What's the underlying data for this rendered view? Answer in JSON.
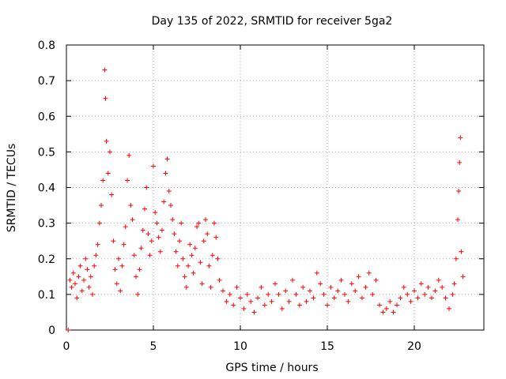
{
  "chart_data": {
    "type": "scatter",
    "title": "Day 135 of 2022, SRMTID for receiver 5ga2",
    "xlabel": "GPS time / hours",
    "ylabel": "SRMTID / TECUs",
    "xlim": [
      0,
      24
    ],
    "ylim": [
      0,
      0.8
    ],
    "xticks": [
      0,
      5,
      10,
      15,
      20
    ],
    "yticks": [
      0,
      0.1,
      0.2,
      0.3,
      0.4,
      0.5,
      0.6,
      0.7,
      0.8
    ],
    "xtick_labels": [
      "0",
      "5",
      "10",
      "15",
      "20"
    ],
    "ytick_labels": [
      "0",
      "0.1",
      "0.2",
      "0.3",
      "0.4",
      "0.5",
      "0.6",
      "0.7",
      "0.8"
    ],
    "grid": true,
    "marker": "+",
    "color": "#ff0000",
    "series": [
      {
        "name": "SRMTID",
        "points": [
          [
            0.1,
            0.0
          ],
          [
            0.2,
            0.14
          ],
          [
            0.3,
            0.12
          ],
          [
            0.4,
            0.16
          ],
          [
            0.5,
            0.13
          ],
          [
            0.6,
            0.09
          ],
          [
            0.7,
            0.15
          ],
          [
            0.8,
            0.18
          ],
          [
            0.9,
            0.11
          ],
          [
            1.0,
            0.14
          ],
          [
            1.1,
            0.2
          ],
          [
            1.2,
            0.17
          ],
          [
            1.3,
            0.12
          ],
          [
            1.4,
            0.15
          ],
          [
            1.5,
            0.1
          ],
          [
            1.6,
            0.18
          ],
          [
            1.7,
            0.21
          ],
          [
            1.8,
            0.24
          ],
          [
            1.9,
            0.3
          ],
          [
            2.0,
            0.35
          ],
          [
            2.1,
            0.42
          ],
          [
            2.2,
            0.73
          ],
          [
            2.25,
            0.65
          ],
          [
            2.3,
            0.53
          ],
          [
            2.4,
            0.44
          ],
          [
            2.5,
            0.5
          ],
          [
            2.6,
            0.38
          ],
          [
            2.7,
            0.25
          ],
          [
            2.8,
            0.17
          ],
          [
            2.9,
            0.13
          ],
          [
            3.0,
            0.2
          ],
          [
            3.1,
            0.11
          ],
          [
            3.2,
            0.18
          ],
          [
            3.3,
            0.24
          ],
          [
            3.4,
            0.29
          ],
          [
            3.5,
            0.42
          ],
          [
            3.6,
            0.49
          ],
          [
            3.7,
            0.35
          ],
          [
            3.8,
            0.31
          ],
          [
            3.9,
            0.21
          ],
          [
            4.0,
            0.15
          ],
          [
            4.1,
            0.1
          ],
          [
            4.2,
            0.17
          ],
          [
            4.3,
            0.23
          ],
          [
            4.4,
            0.28
          ],
          [
            4.5,
            0.34
          ],
          [
            4.6,
            0.4
          ],
          [
            4.7,
            0.27
          ],
          [
            4.8,
            0.21
          ],
          [
            4.9,
            0.25
          ],
          [
            5.0,
            0.46
          ],
          [
            5.1,
            0.33
          ],
          [
            5.2,
            0.3
          ],
          [
            5.3,
            0.26
          ],
          [
            5.4,
            0.22
          ],
          [
            5.5,
            0.28
          ],
          [
            5.6,
            0.36
          ],
          [
            5.7,
            0.44
          ],
          [
            5.8,
            0.48
          ],
          [
            5.9,
            0.39
          ],
          [
            6.0,
            0.35
          ],
          [
            6.1,
            0.31
          ],
          [
            6.2,
            0.27
          ],
          [
            6.3,
            0.22
          ],
          [
            6.4,
            0.18
          ],
          [
            6.5,
            0.25
          ],
          [
            6.6,
            0.3
          ],
          [
            6.7,
            0.2
          ],
          [
            6.8,
            0.15
          ],
          [
            6.9,
            0.12
          ],
          [
            7.0,
            0.18
          ],
          [
            7.1,
            0.24
          ],
          [
            7.2,
            0.21
          ],
          [
            7.3,
            0.16
          ],
          [
            7.4,
            0.23
          ],
          [
            7.5,
            0.29
          ],
          [
            7.6,
            0.3
          ],
          [
            7.7,
            0.19
          ],
          [
            7.8,
            0.13
          ],
          [
            7.9,
            0.25
          ],
          [
            8.0,
            0.31
          ],
          [
            8.1,
            0.27
          ],
          [
            8.2,
            0.18
          ],
          [
            8.3,
            0.12
          ],
          [
            8.4,
            0.21
          ],
          [
            8.5,
            0.3
          ],
          [
            8.6,
            0.26
          ],
          [
            8.7,
            0.2
          ],
          [
            8.8,
            0.14
          ],
          [
            9.0,
            0.11
          ],
          [
            9.2,
            0.08
          ],
          [
            9.4,
            0.1
          ],
          [
            9.6,
            0.07
          ],
          [
            9.8,
            0.12
          ],
          [
            10.0,
            0.09
          ],
          [
            10.2,
            0.06
          ],
          [
            10.4,
            0.1
          ],
          [
            10.6,
            0.08
          ],
          [
            10.8,
            0.05
          ],
          [
            11.0,
            0.09
          ],
          [
            11.2,
            0.12
          ],
          [
            11.4,
            0.07
          ],
          [
            11.6,
            0.1
          ],
          [
            11.8,
            0.08
          ],
          [
            12.0,
            0.13
          ],
          [
            12.2,
            0.1
          ],
          [
            12.4,
            0.06
          ],
          [
            12.6,
            0.11
          ],
          [
            12.8,
            0.08
          ],
          [
            13.0,
            0.14
          ],
          [
            13.2,
            0.1
          ],
          [
            13.4,
            0.07
          ],
          [
            13.6,
            0.12
          ],
          [
            13.8,
            0.08
          ],
          [
            14.0,
            0.11
          ],
          [
            14.2,
            0.09
          ],
          [
            14.4,
            0.16
          ],
          [
            14.6,
            0.13
          ],
          [
            14.8,
            0.1
          ],
          [
            15.0,
            0.07
          ],
          [
            15.2,
            0.12
          ],
          [
            15.4,
            0.09
          ],
          [
            15.6,
            0.11
          ],
          [
            15.8,
            0.14
          ],
          [
            16.0,
            0.1
          ],
          [
            16.2,
            0.08
          ],
          [
            16.4,
            0.13
          ],
          [
            16.6,
            0.11
          ],
          [
            16.8,
            0.15
          ],
          [
            17.0,
            0.09
          ],
          [
            17.2,
            0.12
          ],
          [
            17.4,
            0.16
          ],
          [
            17.6,
            0.1
          ],
          [
            17.8,
            0.14
          ],
          [
            18.0,
            0.07
          ],
          [
            18.2,
            0.05
          ],
          [
            18.4,
            0.06
          ],
          [
            18.6,
            0.08
          ],
          [
            18.8,
            0.05
          ],
          [
            19.0,
            0.07
          ],
          [
            19.2,
            0.09
          ],
          [
            19.4,
            0.12
          ],
          [
            19.6,
            0.1
          ],
          [
            19.8,
            0.08
          ],
          [
            20.0,
            0.11
          ],
          [
            20.2,
            0.09
          ],
          [
            20.4,
            0.13
          ],
          [
            20.6,
            0.1
          ],
          [
            20.8,
            0.12
          ],
          [
            21.0,
            0.09
          ],
          [
            21.2,
            0.11
          ],
          [
            21.4,
            0.14
          ],
          [
            21.6,
            0.12
          ],
          [
            21.8,
            0.09
          ],
          [
            22.0,
            0.06
          ],
          [
            22.2,
            0.1
          ],
          [
            22.3,
            0.13
          ],
          [
            22.4,
            0.2
          ],
          [
            22.5,
            0.31
          ],
          [
            22.55,
            0.39
          ],
          [
            22.6,
            0.47
          ],
          [
            22.65,
            0.54
          ],
          [
            22.7,
            0.22
          ],
          [
            22.8,
            0.15
          ]
        ]
      }
    ]
  }
}
